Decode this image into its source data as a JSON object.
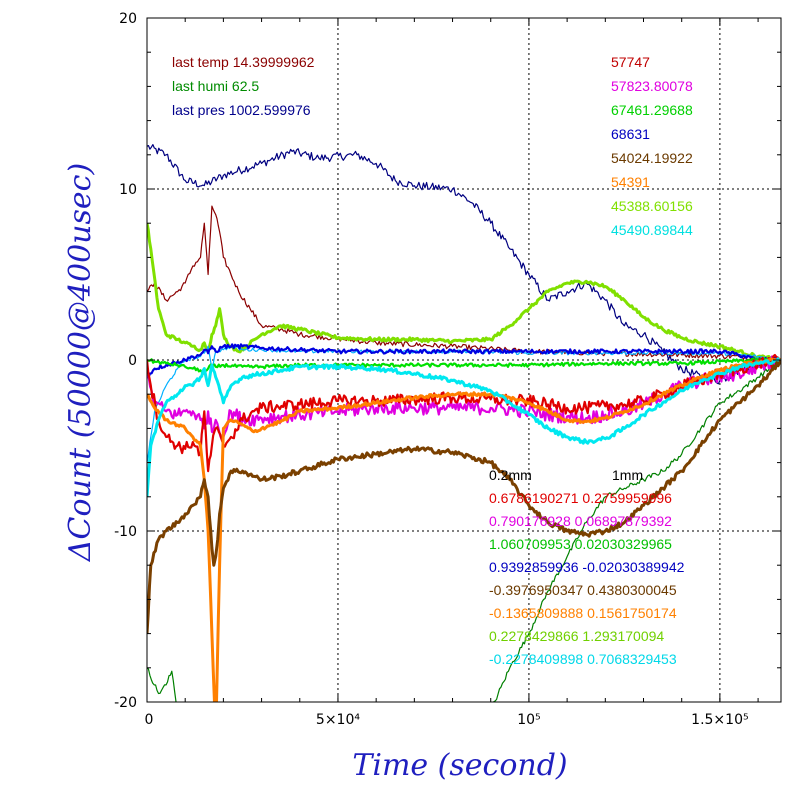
{
  "chart_data": {
    "type": "line",
    "title": "",
    "xlabel": "Time (second)",
    "ylabel": "ΔCount (50000@400usec)",
    "xlim": [
      0,
      166000
    ],
    "ylim": [
      -20,
      20
    ],
    "grid": true,
    "x_ticks": [
      {
        "value": 0,
        "label": "0"
      },
      {
        "value": 50000,
        "label": "5×10⁴"
      },
      {
        "value": 100000,
        "label": "10⁵"
      },
      {
        "value": 150000,
        "label": "1.5×10⁵"
      }
    ],
    "y_ticks": [
      {
        "value": 20,
        "label": "20"
      },
      {
        "value": 10,
        "label": "10"
      },
      {
        "value": 0,
        "label": "0"
      },
      {
        "value": -10,
        "label": "-10"
      },
      {
        "value": -20,
        "label": "-20"
      }
    ],
    "env_labels": [
      {
        "text": "last temp 14.39999962",
        "color": "#8b0000"
      },
      {
        "text": "last humi 62.5",
        "color": "#008b00"
      },
      {
        "text": "last pres 1002.599976",
        "color": "#00008b"
      }
    ],
    "count_labels": [
      {
        "text": "57747",
        "color": "#c00000"
      },
      {
        "text": "57823.80078",
        "color": "#e000e0"
      },
      {
        "text": "67461.29688",
        "color": "#00d000"
      },
      {
        "text": "68631",
        "color": "#0000c0"
      },
      {
        "text": "54024.19922",
        "color": "#6b3a00"
      },
      {
        "text": "54391",
        "color": "#ff8000"
      },
      {
        "text": "45388.60156",
        "color": "#80e000"
      },
      {
        "text": "45490.89844",
        "color": "#00e0e0"
      }
    ],
    "coef_header": [
      "0.2mm",
      "1mm"
    ],
    "coef_rows": [
      {
        "text": "0.6786190271 0.2759959996",
        "color": "#e00000"
      },
      {
        "text": "0.790176928 0.06897879392",
        "color": "#e000e0"
      },
      {
        "text": "1.060709953 0.02030329965",
        "color": "#00c000"
      },
      {
        "text": "0.9392859936 -0.02030389942",
        "color": "#0000c0"
      },
      {
        "text": "-0.3976950347 0.4380300045",
        "color": "#6b3a00"
      },
      {
        "text": "-0.1365809888 0.1561750174",
        "color": "#ff8000"
      },
      {
        "text": "0.2278429866 1.293170094",
        "color": "#70d000"
      },
      {
        "text": "-0.2278409898 0.7068329453",
        "color": "#00d8e8"
      }
    ],
    "series": [
      {
        "color": "#000080",
        "width": 1.2,
        "noise": 0.25,
        "x": [
          0,
          5000,
          10000,
          15000,
          20000,
          30000,
          38000,
          45000,
          55000,
          60000,
          65000,
          70000,
          80000,
          85000,
          90000,
          95000,
          100000,
          105000,
          110000,
          115000,
          120000,
          125000,
          130000,
          135000,
          140000,
          145000,
          150000,
          155000,
          160000,
          166000
        ],
        "y": [
          12.5,
          12.0,
          10.5,
          10.2,
          10.8,
          11.5,
          12.2,
          11.8,
          12.0,
          11.5,
          10.5,
          10.2,
          10.0,
          9.2,
          8.0,
          6.5,
          5.0,
          3.5,
          4.0,
          4.5,
          3.5,
          2.0,
          1.5,
          0.5,
          -0.5,
          -1.0,
          -1.2,
          -0.6,
          -0.2,
          0.0
        ]
      },
      {
        "color": "#8b0000",
        "width": 1.2,
        "noise": 0.15,
        "x": [
          0,
          2000,
          5000,
          8000,
          10000,
          12000,
          14000,
          15000,
          16000,
          17000,
          18000,
          19000,
          20000,
          22000,
          24000,
          27000,
          30000,
          35000,
          40000,
          60000,
          80000,
          100000,
          120000,
          140000,
          155000,
          166000
        ],
        "y": [
          4.0,
          4.5,
          3.5,
          4.0,
          4.5,
          5.5,
          6.0,
          8.0,
          5.0,
          9.0,
          8.5,
          7.5,
          6.0,
          5.0,
          4.0,
          3.0,
          2.0,
          1.8,
          1.5,
          1.0,
          0.8,
          0.5,
          0.4,
          0.3,
          0.2,
          0.0
        ]
      },
      {
        "color": "#008000",
        "width": 1.2,
        "noise": 0.15,
        "x": [
          0,
          3000,
          5000,
          6500,
          8000,
          90000,
          95000,
          100000,
          105000,
          110000,
          115000,
          120000,
          125000,
          130000,
          135000,
          140000,
          145000,
          150000,
          155000,
          160000,
          166000
        ],
        "y": [
          -18.0,
          -19.5,
          -19.0,
          -18.2,
          -20.5,
          -20.5,
          -18.0,
          -16.0,
          -13.5,
          -11.5,
          -9.5,
          -8.0,
          -7.5,
          -7.0,
          -6.5,
          -5.5,
          -4.0,
          -2.5,
          -1.8,
          -1.0,
          0.0
        ]
      },
      {
        "color": "#80e000",
        "width": 3,
        "noise": 0.1,
        "x": [
          0,
          1000,
          3000,
          5000,
          8000,
          10000,
          12000,
          14000,
          15000,
          16000,
          17000,
          18000,
          19000,
          20000,
          21000,
          22000,
          24000,
          26000,
          30000,
          35000,
          40000,
          50000,
          60000,
          70000,
          80000,
          90000,
          95000,
          100000,
          105000,
          110000,
          115000,
          120000,
          125000,
          130000,
          135000,
          140000,
          145000,
          150000,
          155000,
          160000,
          166000
        ],
        "y": [
          8.0,
          6.5,
          3.0,
          1.5,
          1.2,
          1.0,
          0.8,
          0.6,
          1.0,
          0.5,
          1.5,
          2.0,
          3.0,
          1.5,
          1.0,
          0.8,
          0.5,
          0.8,
          1.5,
          2.0,
          1.8,
          1.3,
          1.2,
          1.2,
          1.1,
          1.2,
          2.0,
          3.0,
          4.0,
          4.5,
          4.6,
          4.3,
          3.5,
          2.5,
          1.8,
          1.3,
          1.0,
          0.8,
          0.5,
          0.2,
          0.0
        ]
      },
      {
        "color": "#00b0ff",
        "width": 1.2,
        "noise": 0.1,
        "x": [
          0,
          2000,
          5000,
          8000,
          10000,
          14000,
          15000,
          16000,
          17000,
          18000,
          20000,
          22000,
          25000,
          30000,
          40000,
          60000,
          80000,
          100000,
          120000,
          140000,
          150000,
          155000,
          160000,
          166000
        ],
        "y": [
          -6.0,
          -3.0,
          -1.5,
          -0.5,
          0.0,
          0.2,
          0.4,
          0.8,
          -0.5,
          0.5,
          0.6,
          0.8,
          0.6,
          0.6,
          0.5,
          0.5,
          0.5,
          0.4,
          0.4,
          0.4,
          0.4,
          0.3,
          0.2,
          0.0
        ]
      },
      {
        "color": "#0000e0",
        "width": 2.2,
        "noise": 0.12,
        "x": [
          0,
          2000,
          5000,
          8000,
          10000,
          12000,
          14000,
          15000,
          16000,
          17000,
          18000,
          20000,
          25000,
          30000,
          40000,
          50000,
          60000,
          70000,
          80000,
          90000,
          100000,
          110000,
          120000,
          130000,
          140000,
          150000,
          155000,
          160000,
          166000
        ],
        "y": [
          -1.0,
          -0.5,
          -0.3,
          -0.1,
          0.0,
          0.2,
          0.3,
          0.6,
          0.4,
          0.8,
          0.5,
          0.8,
          0.8,
          0.7,
          0.6,
          0.5,
          0.5,
          0.5,
          0.5,
          0.5,
          0.5,
          0.5,
          0.5,
          0.5,
          0.5,
          0.5,
          0.3,
          0.0,
          0.0
        ]
      },
      {
        "color": "#00e000",
        "width": 2.2,
        "noise": 0.1,
        "x": [
          0,
          2000,
          5000,
          8000,
          10000,
          12000,
          14000,
          15000,
          16000,
          17000,
          18000,
          20000,
          25000,
          30000,
          40000,
          60000,
          80000,
          100000,
          120000,
          140000,
          150000,
          160000,
          166000
        ],
        "y": [
          0.0,
          -0.1,
          -0.2,
          -0.3,
          -0.4,
          -0.5,
          -0.6,
          -0.8,
          -0.5,
          -0.3,
          -0.4,
          -0.3,
          -0.4,
          -0.4,
          -0.3,
          -0.3,
          -0.3,
          -0.3,
          -0.2,
          -0.2,
          -0.1,
          0.0,
          0.0
        ]
      },
      {
        "color": "#e000e0",
        "width": 2.2,
        "noise": 0.4,
        "x": [
          0,
          2000,
          5000,
          8000,
          10000,
          12000,
          14000,
          15000,
          16000,
          17000,
          18000,
          20000,
          22000,
          25000,
          30000,
          40000,
          50000,
          60000,
          70000,
          80000,
          90000,
          100000,
          105000,
          110000,
          115000,
          120000,
          125000,
          130000,
          135000,
          140000,
          145000,
          150000,
          155000,
          160000,
          166000
        ],
        "y": [
          -1.0,
          -2.5,
          -3.0,
          -3.2,
          -3.0,
          -3.0,
          -3.5,
          -4.0,
          -3.0,
          -4.2,
          -3.5,
          -4.5,
          -3.0,
          -3.5,
          -3.4,
          -3.2,
          -3.0,
          -2.8,
          -2.8,
          -2.8,
          -2.8,
          -3.0,
          -3.2,
          -3.3,
          -3.4,
          -3.2,
          -3.0,
          -2.6,
          -2.0,
          -1.5,
          -1.2,
          -1.0,
          -0.8,
          -0.4,
          0.0
        ]
      },
      {
        "color": "#e00000",
        "width": 2.2,
        "noise": 0.35,
        "x": [
          0,
          1000,
          3000,
          5000,
          8000,
          10000,
          12000,
          14000,
          15000,
          16000,
          17000,
          18000,
          20000,
          22000,
          25000,
          28000,
          30000,
          40000,
          50000,
          60000,
          70000,
          80000,
          90000,
          100000,
          105000,
          110000,
          115000,
          120000,
          125000,
          130000,
          135000,
          140000,
          145000,
          150000,
          155000,
          160000,
          166000
        ],
        "y": [
          0.0,
          -1.5,
          -3.5,
          -4.5,
          -5.0,
          -5.2,
          -4.8,
          -5.5,
          -3.0,
          -6.5,
          -5.0,
          -4.0,
          -5.0,
          -4.5,
          -3.5,
          -3.0,
          -2.8,
          -2.6,
          -2.4,
          -2.4,
          -2.3,
          -2.2,
          -2.3,
          -2.4,
          -2.6,
          -2.8,
          -2.8,
          -2.7,
          -2.6,
          -2.4,
          -2.0,
          -1.5,
          -1.2,
          -0.8,
          -0.5,
          -0.2,
          0.0
        ]
      },
      {
        "color": "#ff8000",
        "width": 3,
        "noise": 0.1,
        "x": [
          0,
          2000,
          5000,
          8000,
          10000,
          12000,
          14000,
          15000,
          16000,
          17000,
          18000,
          19000,
          20000,
          22000,
          25000,
          28000,
          30000,
          35000,
          40000,
          50000,
          60000,
          70000,
          80000,
          90000,
          95000,
          100000,
          105000,
          110000,
          115000,
          120000,
          125000,
          130000,
          135000,
          140000,
          145000,
          150000,
          155000,
          160000,
          166000
        ],
        "y": [
          -2.0,
          -2.8,
          -3.5,
          -3.8,
          -4.0,
          -4.5,
          -5.0,
          -7.0,
          -10.0,
          -16.0,
          -22.0,
          -12.0,
          -4.0,
          -3.5,
          -3.8,
          -4.2,
          -4.0,
          -3.6,
          -3.0,
          -2.8,
          -2.5,
          -2.2,
          -2.0,
          -2.0,
          -2.2,
          -2.5,
          -3.0,
          -3.5,
          -3.6,
          -3.4,
          -3.0,
          -2.6,
          -2.0,
          -1.5,
          -1.0,
          -0.6,
          -0.3,
          -0.1,
          0.0
        ]
      },
      {
        "color": "#00e8f0",
        "width": 3,
        "noise": 0.12,
        "x": [
          0,
          1000,
          3000,
          5000,
          8000,
          10000,
          12000,
          14000,
          15000,
          16000,
          17000,
          18000,
          20000,
          22000,
          25000,
          30000,
          35000,
          40000,
          50000,
          60000,
          70000,
          80000,
          90000,
          95000,
          100000,
          105000,
          110000,
          115000,
          120000,
          125000,
          130000,
          135000,
          140000,
          145000,
          150000,
          155000,
          160000,
          166000
        ],
        "y": [
          -8.0,
          -5.0,
          -3.5,
          -2.5,
          -2.0,
          -1.5,
          -1.5,
          -1.0,
          -0.5,
          -1.5,
          -0.3,
          -1.0,
          -2.5,
          -1.5,
          -1.0,
          -0.8,
          -0.6,
          -0.4,
          -0.4,
          -0.5,
          -0.8,
          -1.2,
          -1.8,
          -2.5,
          -3.2,
          -4.0,
          -4.5,
          -4.8,
          -4.6,
          -4.0,
          -3.2,
          -2.5,
          -1.8,
          -1.2,
          -0.8,
          -0.4,
          -0.2,
          0.0
        ]
      },
      {
        "color": "#7a4000",
        "width": 3,
        "noise": 0.15,
        "x": [
          0,
          1000,
          3000,
          5000,
          8000,
          10000,
          12000,
          14000,
          15000,
          16000,
          17000,
          17500,
          18000,
          18500,
          19000,
          20000,
          22000,
          25000,
          28000,
          30000,
          35000,
          40000,
          50000,
          60000,
          70000,
          80000,
          90000,
          95000,
          100000,
          105000,
          110000,
          115000,
          120000,
          125000,
          130000,
          135000,
          140000,
          145000,
          150000,
          155000,
          160000,
          163000,
          166000
        ],
        "y": [
          -16.0,
          -12.0,
          -10.5,
          -10.0,
          -9.5,
          -9.0,
          -8.5,
          -8.0,
          -7.0,
          -8.0,
          -11.0,
          -12.0,
          -11.5,
          -10.5,
          -9.0,
          -7.5,
          -6.5,
          -6.5,
          -6.8,
          -7.0,
          -6.8,
          -6.5,
          -5.8,
          -5.5,
          -5.2,
          -5.4,
          -6.0,
          -7.0,
          -8.5,
          -9.5,
          -10.0,
          -10.2,
          -10.0,
          -9.5,
          -8.5,
          -7.5,
          -6.5,
          -5.0,
          -3.5,
          -2.5,
          -1.5,
          -0.8,
          0.0
        ]
      }
    ]
  }
}
